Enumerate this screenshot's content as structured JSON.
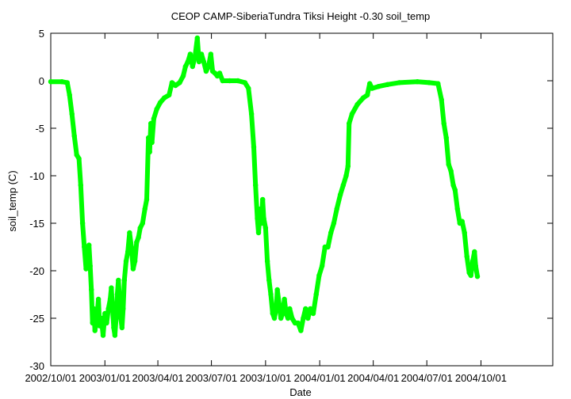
{
  "chart_data": {
    "type": "line",
    "title": "CEOP CAMP-SiberiaTundra Tiksi Height -0.30 soil_temp",
    "xlabel": "Date",
    "ylabel": "soil_temp (C)",
    "ylim": [
      -30,
      5
    ],
    "xlim": [
      "2002-10-01",
      "2005-01-31"
    ],
    "yticks": [
      5,
      0,
      -5,
      -10,
      -15,
      -20,
      -25,
      -30
    ],
    "xticks": [
      {
        "date": "2002-10-01",
        "label": "2002/10/01"
      },
      {
        "date": "2003-01-01",
        "label": "2003/01/01"
      },
      {
        "date": "2003-04-01",
        "label": "2003/04/01"
      },
      {
        "date": "2003-07-01",
        "label": "2003/07/01"
      },
      {
        "date": "2003-10-01",
        "label": "2003/10/01"
      },
      {
        "date": "2004-01-01",
        "label": "2004/01/01"
      },
      {
        "date": "2004-04-01",
        "label": "2004/04/01"
      },
      {
        "date": "2004-07-01",
        "label": "2004/07/01"
      },
      {
        "date": "2004-10-01",
        "label": "2004/10/01"
      }
    ],
    "grid": false,
    "legend": "none",
    "color": "#00ff00",
    "series": [
      {
        "values": [
          [
            "2002-10-01",
            -0.1
          ],
          [
            "2002-10-20",
            -0.1
          ],
          [
            "2002-10-29",
            -0.2
          ],
          [
            "2002-11-02",
            -1.5
          ],
          [
            "2002-11-06",
            -3.5
          ],
          [
            "2002-11-10",
            -5.8
          ],
          [
            "2002-11-14",
            -7.8
          ],
          [
            "2002-11-18",
            -8.2
          ],
          [
            "2002-11-21",
            -11.0
          ],
          [
            "2002-11-24",
            -15.0
          ],
          [
            "2002-11-27",
            -17.5
          ],
          [
            "2002-11-30",
            -19.8
          ],
          [
            "2002-12-03",
            -18.0
          ],
          [
            "2002-12-05",
            -17.3
          ],
          [
            "2002-12-07",
            -19.5
          ],
          [
            "2002-12-09",
            -22.0
          ],
          [
            "2002-12-11",
            -25.5
          ],
          [
            "2002-12-13",
            -24.0
          ],
          [
            "2002-12-15",
            -26.3
          ],
          [
            "2002-12-17",
            -25.5
          ],
          [
            "2002-12-19",
            -24.5
          ],
          [
            "2002-12-21",
            -23.0
          ],
          [
            "2002-12-23",
            -25.8
          ],
          [
            "2002-12-26",
            -25.0
          ],
          [
            "2002-12-29",
            -26.8
          ],
          [
            "2003-01-01",
            -24.5
          ],
          [
            "2003-01-04",
            -25.5
          ],
          [
            "2003-01-07",
            -24.0
          ],
          [
            "2003-01-10",
            -23.0
          ],
          [
            "2003-01-12",
            -21.8
          ],
          [
            "2003-01-14",
            -24.0
          ],
          [
            "2003-01-16",
            -26.0
          ],
          [
            "2003-01-18",
            -26.8
          ],
          [
            "2003-01-20",
            -25.0
          ],
          [
            "2003-01-22",
            -22.5
          ],
          [
            "2003-01-24",
            -21.0
          ],
          [
            "2003-01-26",
            -23.0
          ],
          [
            "2003-01-28",
            -25.0
          ],
          [
            "2003-01-30",
            -26.0
          ],
          [
            "2003-02-01",
            -24.0
          ],
          [
            "2003-02-03",
            -21.0
          ],
          [
            "2003-02-06",
            -19.0
          ],
          [
            "2003-02-09",
            -18.0
          ],
          [
            "2003-02-12",
            -16.0
          ],
          [
            "2003-02-15",
            -17.5
          ],
          [
            "2003-02-18",
            -19.8
          ],
          [
            "2003-02-21",
            -19.0
          ],
          [
            "2003-02-24",
            -17.0
          ],
          [
            "2003-02-27",
            -16.5
          ],
          [
            "2003-03-02",
            -15.5
          ],
          [
            "2003-03-06",
            -15.0
          ],
          [
            "2003-03-10",
            -13.5
          ],
          [
            "2003-03-13",
            -12.5
          ],
          [
            "2003-03-16",
            -6.0
          ],
          [
            "2003-03-18",
            -7.5
          ],
          [
            "2003-03-20",
            -4.5
          ],
          [
            "2003-03-22",
            -6.5
          ],
          [
            "2003-03-25",
            -4.0
          ],
          [
            "2003-03-30",
            -3.0
          ],
          [
            "2003-04-05",
            -2.3
          ],
          [
            "2003-04-12",
            -1.8
          ],
          [
            "2003-04-20",
            -1.5
          ],
          [
            "2003-04-25",
            -0.2
          ],
          [
            "2003-05-01",
            -0.5
          ],
          [
            "2003-05-08",
            -0.2
          ],
          [
            "2003-05-14",
            0.5
          ],
          [
            "2003-05-18",
            1.5
          ],
          [
            "2003-05-22",
            2.0
          ],
          [
            "2003-05-26",
            2.8
          ],
          [
            "2003-05-30",
            1.5
          ],
          [
            "2003-06-03",
            2.5
          ],
          [
            "2003-06-07",
            4.5
          ],
          [
            "2003-06-10",
            2.0
          ],
          [
            "2003-06-14",
            2.8
          ],
          [
            "2003-06-18",
            2.0
          ],
          [
            "2003-06-22",
            1.0
          ],
          [
            "2003-06-26",
            1.5
          ],
          [
            "2003-06-30",
            2.8
          ],
          [
            "2003-07-03",
            1.0
          ],
          [
            "2003-07-07",
            0.8
          ],
          [
            "2003-07-11",
            0.5
          ],
          [
            "2003-07-15",
            0.8
          ],
          [
            "2003-07-20",
            0.0
          ],
          [
            "2003-08-01",
            0.0
          ],
          [
            "2003-08-15",
            0.0
          ],
          [
            "2003-08-27",
            -0.2
          ],
          [
            "2003-09-02",
            -0.8
          ],
          [
            "2003-09-07",
            -3.5
          ],
          [
            "2003-09-11",
            -7.0
          ],
          [
            "2003-09-14",
            -11.0
          ],
          [
            "2003-09-17",
            -14.5
          ],
          [
            "2003-09-19",
            -16.0
          ],
          [
            "2003-09-22",
            -13.5
          ],
          [
            "2003-09-24",
            -15.0
          ],
          [
            "2003-09-26",
            -12.5
          ],
          [
            "2003-09-28",
            -14.5
          ],
          [
            "2003-10-01",
            -15.5
          ],
          [
            "2003-10-04",
            -19.0
          ],
          [
            "2003-10-07",
            -21.0
          ],
          [
            "2003-10-10",
            -22.5
          ],
          [
            "2003-10-13",
            -24.5
          ],
          [
            "2003-10-16",
            -25.0
          ],
          [
            "2003-10-19",
            -24.0
          ],
          [
            "2003-10-21",
            -22.0
          ],
          [
            "2003-10-24",
            -23.5
          ],
          [
            "2003-10-27",
            -25.0
          ],
          [
            "2003-10-30",
            -24.5
          ],
          [
            "2003-11-02",
            -23.0
          ],
          [
            "2003-11-05",
            -24.5
          ],
          [
            "2003-11-08",
            -25.0
          ],
          [
            "2003-11-11",
            -24.0
          ],
          [
            "2003-11-15",
            -25.0
          ],
          [
            "2003-11-20",
            -25.5
          ],
          [
            "2003-11-25",
            -25.5
          ],
          [
            "2003-11-30",
            -26.3
          ],
          [
            "2003-12-04",
            -25.0
          ],
          [
            "2003-12-08",
            -24.0
          ],
          [
            "2003-12-12",
            -25.0
          ],
          [
            "2003-12-16",
            -24.0
          ],
          [
            "2003-12-21",
            -24.5
          ],
          [
            "2003-12-26",
            -22.5
          ],
          [
            "2003-12-31",
            -20.5
          ],
          [
            "2004-01-05",
            -19.5
          ],
          [
            "2004-01-10",
            -17.5
          ],
          [
            "2004-01-15",
            -17.5
          ],
          [
            "2004-01-20",
            -16.0
          ],
          [
            "2004-01-25",
            -15.0
          ],
          [
            "2004-01-30",
            -13.5
          ],
          [
            "2004-02-05",
            -12.0
          ],
          [
            "2004-02-10",
            -11.0
          ],
          [
            "2004-02-15",
            -10.0
          ],
          [
            "2004-02-18",
            -9.0
          ],
          [
            "2004-02-20",
            -4.5
          ],
          [
            "2004-02-25",
            -3.5
          ],
          [
            "2004-03-05",
            -2.5
          ],
          [
            "2004-03-15",
            -1.8
          ],
          [
            "2004-03-22",
            -1.5
          ],
          [
            "2004-03-26",
            -0.3
          ],
          [
            "2004-03-30",
            -0.8
          ],
          [
            "2004-04-10",
            -0.6
          ],
          [
            "2004-04-25",
            -0.4
          ],
          [
            "2004-05-15",
            -0.2
          ],
          [
            "2004-06-15",
            -0.1
          ],
          [
            "2004-07-05",
            -0.2
          ],
          [
            "2004-07-20",
            -0.3
          ],
          [
            "2004-07-26",
            -2.0
          ],
          [
            "2004-07-30",
            -4.5
          ],
          [
            "2004-08-03",
            -6.0
          ],
          [
            "2004-08-07",
            -8.8
          ],
          [
            "2004-08-11",
            -9.5
          ],
          [
            "2004-08-15",
            -11.0
          ],
          [
            "2004-08-18",
            -11.5
          ],
          [
            "2004-08-22",
            -13.5
          ],
          [
            "2004-08-26",
            -15.0
          ],
          [
            "2004-08-30",
            -14.8
          ],
          [
            "2004-09-03",
            -16.0
          ],
          [
            "2004-09-07",
            -18.5
          ],
          [
            "2004-09-11",
            -20.2
          ],
          [
            "2004-09-14",
            -20.5
          ],
          [
            "2004-09-17",
            -19.0
          ],
          [
            "2004-09-20",
            -18.0
          ],
          [
            "2004-09-22",
            -19.5
          ],
          [
            "2004-09-25",
            -20.6
          ]
        ]
      }
    ]
  }
}
